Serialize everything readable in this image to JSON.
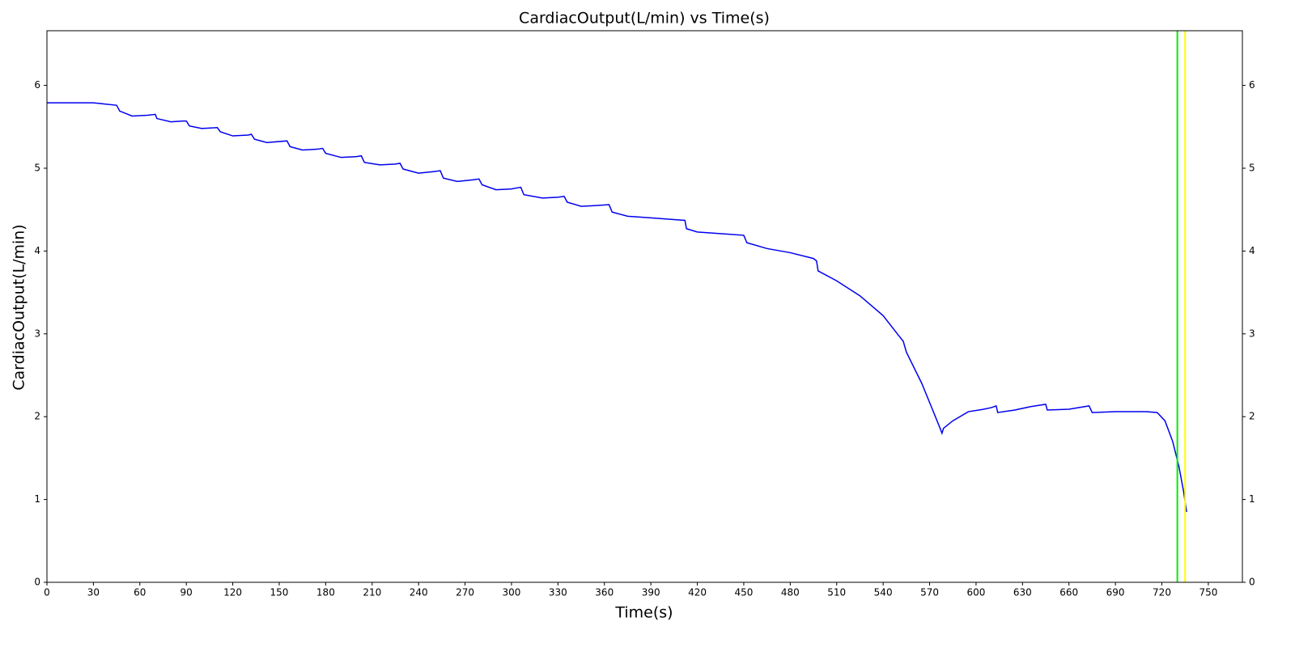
{
  "chart_data": {
    "type": "line",
    "title": "CardiacOutput(L/min) vs Time(s)",
    "x_label": "Time(s)",
    "y_label": "CardiacOutput(L/min)",
    "x": [
      0,
      30,
      35,
      45,
      47,
      55,
      65,
      70,
      71,
      80,
      88,
      90,
      92,
      100,
      110,
      112,
      120,
      130,
      132,
      134,
      142,
      155,
      157,
      165,
      175,
      178,
      180,
      190,
      200,
      203,
      205,
      215,
      225,
      228,
      230,
      240,
      250,
      254,
      256,
      265,
      275,
      279,
      281,
      290,
      300,
      306,
      308,
      320,
      330,
      334,
      336,
      345,
      355,
      363,
      365,
      375,
      390,
      405,
      412,
      413,
      420,
      435,
      450,
      452,
      465,
      480,
      495,
      497,
      498,
      510,
      525,
      540,
      550,
      553,
      555,
      565,
      572,
      577,
      578,
      579,
      585,
      595,
      605,
      610,
      613,
      614,
      625,
      635,
      645,
      646,
      660,
      673,
      675,
      690,
      710,
      717,
      722,
      727,
      731,
      734,
      736
    ],
    "series": [
      {
        "name": "CardiacOutput(L/min)",
        "color": "#0000ee",
        "values": [
          5.79,
          5.79,
          5.78,
          5.76,
          5.69,
          5.63,
          5.64,
          5.65,
          5.6,
          5.56,
          5.57,
          5.57,
          5.51,
          5.48,
          5.49,
          5.44,
          5.39,
          5.4,
          5.41,
          5.35,
          5.31,
          5.33,
          5.26,
          5.22,
          5.23,
          5.24,
          5.18,
          5.13,
          5.14,
          5.15,
          5.07,
          5.04,
          5.05,
          5.06,
          4.99,
          4.94,
          4.96,
          4.97,
          4.88,
          4.84,
          4.86,
          4.87,
          4.8,
          4.74,
          4.75,
          4.77,
          4.68,
          4.64,
          4.65,
          4.66,
          4.59,
          4.54,
          4.55,
          4.56,
          4.47,
          4.42,
          4.4,
          4.38,
          4.37,
          4.27,
          4.23,
          4.21,
          4.19,
          4.1,
          4.03,
          3.98,
          3.91,
          3.88,
          3.76,
          3.64,
          3.46,
          3.22,
          2.98,
          2.91,
          2.78,
          2.4,
          2.08,
          1.85,
          1.8,
          1.86,
          1.95,
          2.06,
          2.09,
          2.11,
          2.13,
          2.05,
          2.08,
          2.12,
          2.15,
          2.08,
          2.09,
          2.13,
          2.05,
          2.06,
          2.06,
          2.05,
          1.95,
          1.7,
          1.4,
          1.1,
          0.85
        ]
      }
    ],
    "vlines": [
      {
        "x": 730,
        "color": "#00ee00"
      },
      {
        "x": 735,
        "color": "#ffff00"
      }
    ],
    "xlim": [
      0,
      772
    ],
    "ylim": [
      0,
      6.66
    ],
    "xticks": [
      0,
      30,
      60,
      90,
      120,
      150,
      180,
      210,
      240,
      270,
      300,
      330,
      360,
      390,
      420,
      450,
      480,
      510,
      540,
      570,
      600,
      630,
      660,
      690,
      720,
      750
    ],
    "yticks": [
      0,
      1,
      2,
      3,
      4,
      5,
      6
    ]
  }
}
